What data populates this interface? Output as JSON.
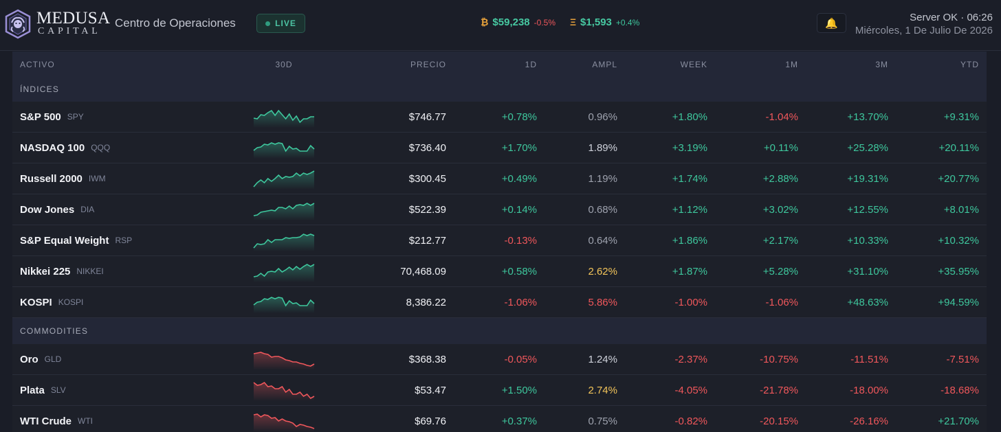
{
  "header": {
    "brand_top": "MEDUSA",
    "brand_bottom": "CAPITAL",
    "title": "Centro de Operaciones",
    "live_label": "LIVE",
    "crypto": [
      {
        "symbol": "₿",
        "price": "$59,238",
        "change": "-0.5%",
        "direction": "down",
        "icon": "bitcoin-icon"
      },
      {
        "symbol": "Ξ",
        "price": "$1,593",
        "change": "+0.4%",
        "direction": "up",
        "icon": "ethereum-icon"
      }
    ],
    "notification_icon": "bell-icon",
    "server_status": "Server OK · 06:26",
    "date": "Miércoles, 1 De Julio De 2026"
  },
  "table": {
    "columns": [
      "ACTIVO",
      "30D",
      "PRECIO",
      "1D",
      "AMPL",
      "WEEK",
      "1M",
      "3M",
      "YTD"
    ],
    "sections": [
      {
        "label": "ÍNDICES",
        "rows": [
          {
            "name": "S&P 500",
            "ticker": "SPY",
            "trend": "mixed-up",
            "price": "$746.77",
            "d1": "+0.78%",
            "ampl": "0.96%",
            "ampl_level": "normal",
            "week": "+1.80%",
            "m1": "-1.04%",
            "m3": "+13.70%",
            "ytd": "+9.31%"
          },
          {
            "name": "NASDAQ 100",
            "ticker": "QQQ",
            "trend": "mixed-up",
            "price": "$736.40",
            "d1": "+1.70%",
            "ampl": "1.89%",
            "ampl_level": "mid",
            "week": "+3.19%",
            "m1": "+0.11%",
            "m3": "+25.28%",
            "ytd": "+20.11%"
          },
          {
            "name": "Russell 2000",
            "ticker": "IWM",
            "trend": "up",
            "price": "$300.45",
            "d1": "+0.49%",
            "ampl": "1.19%",
            "ampl_level": "normal",
            "week": "+1.74%",
            "m1": "+2.88%",
            "m3": "+19.31%",
            "ytd": "+20.77%"
          },
          {
            "name": "Dow Jones",
            "ticker": "DIA",
            "trend": "up",
            "price": "$522.39",
            "d1": "+0.14%",
            "ampl": "0.68%",
            "ampl_level": "normal",
            "week": "+1.12%",
            "m1": "+3.02%",
            "m3": "+12.55%",
            "ytd": "+8.01%"
          },
          {
            "name": "S&P Equal Weight",
            "ticker": "RSP",
            "trend": "up",
            "price": "$212.77",
            "d1": "-0.13%",
            "ampl": "0.64%",
            "ampl_level": "normal",
            "week": "+1.86%",
            "m1": "+2.17%",
            "m3": "+10.33%",
            "ytd": "+10.32%"
          },
          {
            "name": "Nikkei 225",
            "ticker": "NIKKEI",
            "trend": "up",
            "price": "70,468.09",
            "d1": "+0.58%",
            "ampl": "2.62%",
            "ampl_level": "warn",
            "week": "+1.87%",
            "m1": "+5.28%",
            "m3": "+31.10%",
            "ytd": "+35.95%"
          },
          {
            "name": "KOSPI",
            "ticker": "KOSPI",
            "trend": "mixed-up",
            "price": "8,386.22",
            "d1": "-1.06%",
            "ampl": "5.86%",
            "ampl_level": "hot",
            "week": "-1.00%",
            "m1": "-1.06%",
            "m3": "+48.63%",
            "ytd": "+94.59%"
          }
        ]
      },
      {
        "label": "COMMODITIES",
        "rows": [
          {
            "name": "Oro",
            "ticker": "GLD",
            "trend": "down",
            "price": "$368.38",
            "d1": "-0.05%",
            "ampl": "1.24%",
            "ampl_level": "mid",
            "week": "-2.37%",
            "m1": "-10.75%",
            "m3": "-11.51%",
            "ytd": "-7.51%"
          },
          {
            "name": "Plata",
            "ticker": "SLV",
            "trend": "down",
            "price": "$53.47",
            "d1": "+1.50%",
            "ampl": "2.74%",
            "ampl_level": "warn",
            "week": "-4.05%",
            "m1": "-21.78%",
            "m3": "-18.00%",
            "ytd": "-18.68%"
          },
          {
            "name": "WTI Crude",
            "ticker": "WTI",
            "trend": "down",
            "price": "$69.76",
            "d1": "+0.37%",
            "ampl": "0.75%",
            "ampl_level": "normal",
            "week": "-0.82%",
            "m1": "-20.15%",
            "m3": "-26.16%",
            "ytd": "+21.70%"
          }
        ]
      }
    ]
  },
  "colors": {
    "positive": "#3ec79d",
    "negative": "#f0575b",
    "warning": "#f2c45a",
    "accent": "#47c9a2",
    "background": "#1a1d27"
  }
}
